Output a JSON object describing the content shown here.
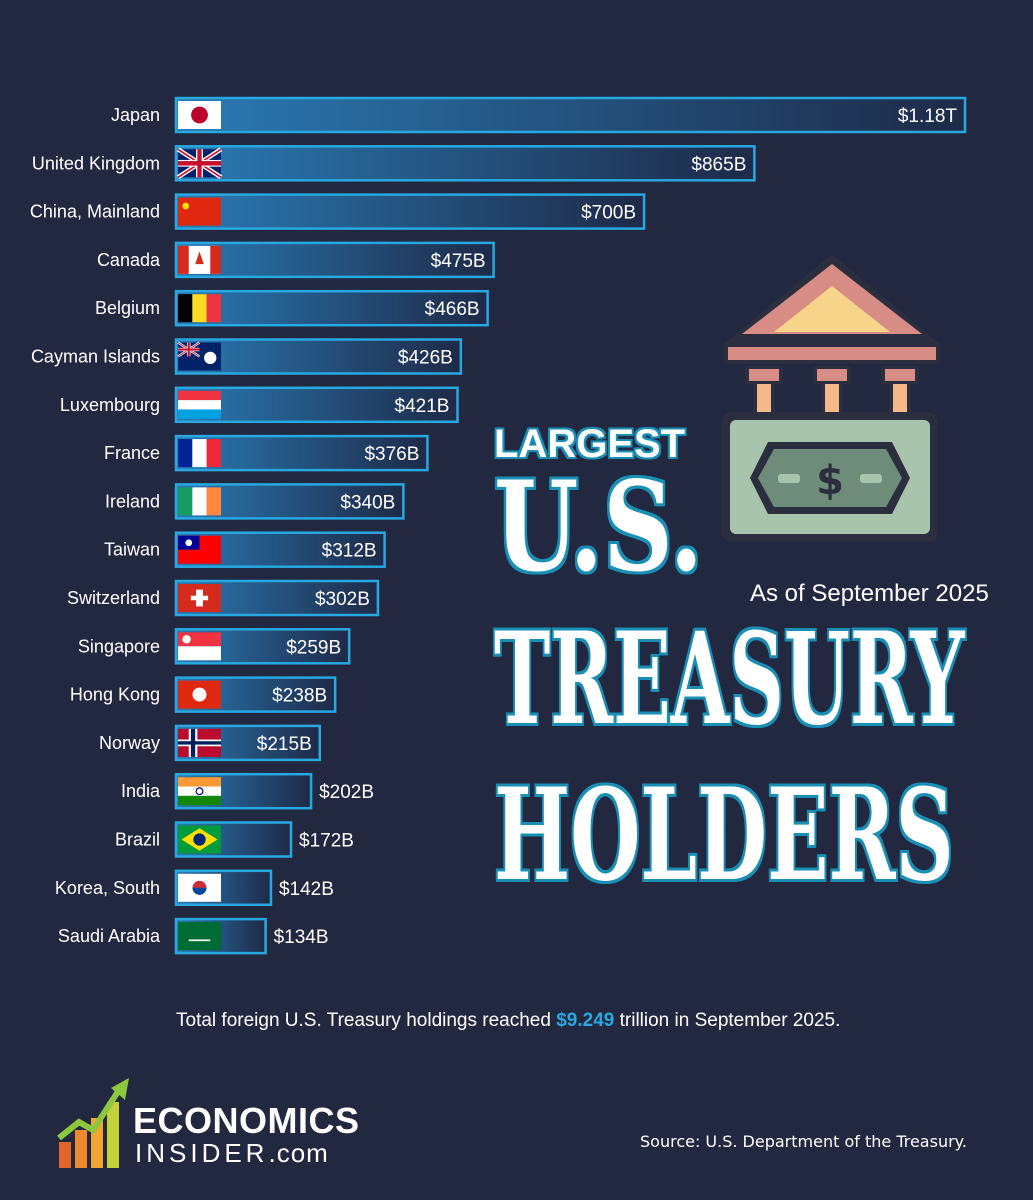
{
  "title": {
    "line1": "LARGEST",
    "line2": "U.S.",
    "line3": "TREASURY",
    "line4": "HOLDERS"
  },
  "as_of": "As of September 2025",
  "total": {
    "prefix": "Total foreign U.S. Treasury holdings reached",
    "highlight": "$9.249",
    "suffix": "trillion in September 2025."
  },
  "logo": {
    "word1": "ECONOMICS",
    "word2_main": "INSIDER",
    "word2_suffix": ".com"
  },
  "source": "Source: U.S. Department of the Treasury.",
  "colors": {
    "background": "#22283f",
    "bar_border": "#27a8e0",
    "bar_fill_start": "#2a7ab4",
    "bar_fill_end": "#1e2a48",
    "title_outline": "#1a8fb5",
    "highlight": "#27a8e0"
  },
  "icons": {
    "bank": "bank-building-icon"
  },
  "chart_data": {
    "type": "bar",
    "orientation": "horizontal",
    "unit": "USD billions",
    "xlim": [
      0,
      1180
    ],
    "categories": [
      "Japan",
      "United Kingdom",
      "China, Mainland",
      "Canada",
      "Belgium",
      "Cayman Islands",
      "Luxembourg",
      "France",
      "Ireland",
      "Taiwan",
      "Switzerland",
      "Singapore",
      "Hong Kong",
      "Norway",
      "India",
      "Brazil",
      "Korea, South",
      "Saudi Arabia"
    ],
    "values": [
      1180,
      865,
      700,
      475,
      466,
      426,
      421,
      376,
      340,
      312,
      302,
      259,
      238,
      215,
      202,
      172,
      142,
      134
    ],
    "value_labels": [
      "$1.18T",
      "$865B",
      "$700B",
      "$475B",
      "$466B",
      "$426B",
      "$421B",
      "$376B",
      "$340B",
      "$312B",
      "$302B",
      "$259B",
      "$238B",
      "$215B",
      "$202B",
      "$172B",
      "$142B",
      "$134B"
    ],
    "flags": [
      "japan",
      "uk",
      "china",
      "canada",
      "belgium",
      "cayman",
      "luxembourg",
      "france",
      "ireland",
      "taiwan",
      "switzerland",
      "singapore",
      "hongkong",
      "norway",
      "india",
      "brazil",
      "korea",
      "saudi"
    ]
  }
}
